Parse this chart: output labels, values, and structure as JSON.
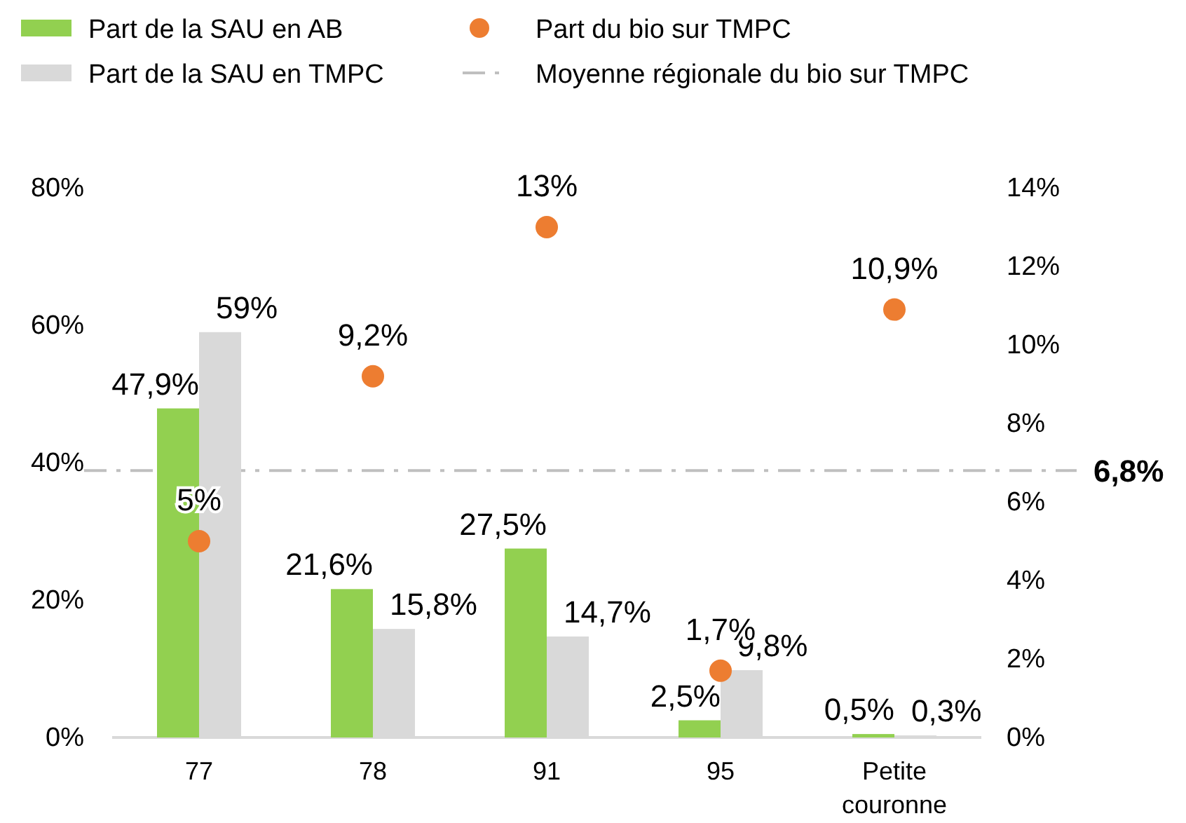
{
  "chart_data": {
    "type": "bar",
    "categories": [
      "77",
      "78",
      "91",
      "95",
      "Petite couronne"
    ],
    "series": [
      {
        "name": "Part de la SAU en AB",
        "color": "#92d050",
        "values": [
          47.9,
          21.6,
          27.5,
          2.5,
          0.5
        ],
        "value_labels": [
          "47,9%",
          "21,6%",
          "27,5%",
          "2,5%",
          "0,5%"
        ]
      },
      {
        "name": "Part de la SAU en TMPC",
        "color": "#d9d9d9",
        "values": [
          59,
          15.8,
          14.7,
          9.8,
          0.3
        ],
        "value_labels": [
          "59%",
          "15,8%",
          "14,7%",
          "9,8%",
          "0,3%"
        ]
      },
      {
        "name": "Part du bio sur TMPC",
        "type": "scatter",
        "axis": "y2",
        "color": "#ed7d31",
        "values": [
          5,
          9.2,
          13,
          1.7,
          10.9
        ],
        "value_labels": [
          "5%",
          "9,2%",
          "13%",
          "1,7%",
          "10,9%"
        ]
      }
    ],
    "ylim": [
      0,
      80
    ],
    "yticks": [
      {
        "value": 0,
        "label": "0%"
      },
      {
        "value": 20,
        "label": "20%"
      },
      {
        "value": 40,
        "label": "40%"
      },
      {
        "value": 60,
        "label": "60%"
      },
      {
        "value": 80,
        "label": "80%"
      }
    ],
    "y2lim": [
      0,
      14
    ],
    "y2ticks": [
      {
        "value": 0,
        "label": "0%"
      },
      {
        "value": 2,
        "label": "2%"
      },
      {
        "value": 4,
        "label": "4%"
      },
      {
        "value": 6,
        "label": "6%"
      },
      {
        "value": 8,
        "label": "8%"
      },
      {
        "value": 10,
        "label": "10%"
      },
      {
        "value": 12,
        "label": "12%"
      },
      {
        "value": 14,
        "label": "14%"
      }
    ],
    "ref_lines": [
      {
        "axis": "y2",
        "value": 6.8,
        "label": "6,8%",
        "color": "#bfbfbf",
        "line_style": "dashed"
      }
    ],
    "annotations": [
      "Moyenne régionale du bio sur TMPC"
    ],
    "legend": "top",
    "grid": false,
    "marker": "circle"
  }
}
